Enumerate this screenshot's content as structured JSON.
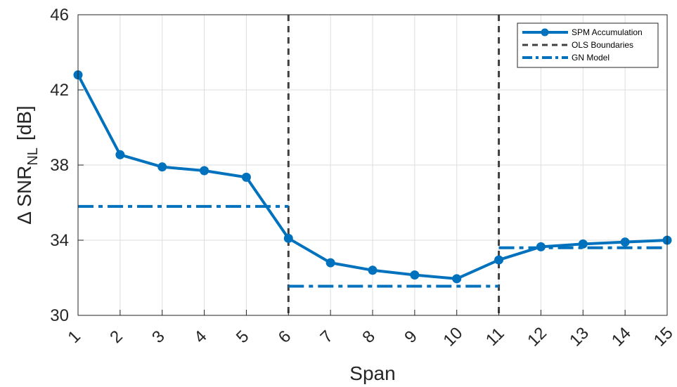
{
  "chart_data": {
    "type": "line",
    "xlabel": "Span",
    "ylabel": {
      "prefix": "Δ SNR",
      "subscript": "NL",
      "unit": "[dB]"
    },
    "xlim": [
      1,
      15
    ],
    "ylim": [
      30,
      46
    ],
    "xticks": [
      1,
      2,
      3,
      4,
      5,
      6,
      7,
      8,
      9,
      10,
      11,
      12,
      13,
      14,
      15
    ],
    "yticks": [
      30,
      34,
      38,
      42,
      46
    ],
    "grid": true,
    "legend_position": "top-right",
    "series": [
      {
        "name": "SPM Accumulation",
        "style": "solid-marker",
        "color": "#0072BD",
        "x": [
          1,
          2,
          3,
          4,
          5,
          6,
          7,
          8,
          9,
          10,
          11,
          12,
          13,
          14,
          15
        ],
        "y": [
          42.8,
          38.55,
          37.9,
          37.7,
          37.35,
          34.1,
          32.8,
          32.4,
          32.15,
          31.95,
          32.95,
          33.65,
          33.8,
          33.9,
          34.0
        ]
      },
      {
        "name": "OLS Boundaries",
        "style": "dashed-vertical",
        "color": "#404040",
        "x": [
          6,
          11
        ]
      },
      {
        "name": "GN Model",
        "style": "dash-dot",
        "color": "#0072BD",
        "segments": [
          {
            "x": [
              1,
              6
            ],
            "y": 35.8
          },
          {
            "x": [
              6,
              11
            ],
            "y": 31.55
          },
          {
            "x": [
              11,
              15
            ],
            "y": 33.6
          }
        ]
      }
    ]
  }
}
